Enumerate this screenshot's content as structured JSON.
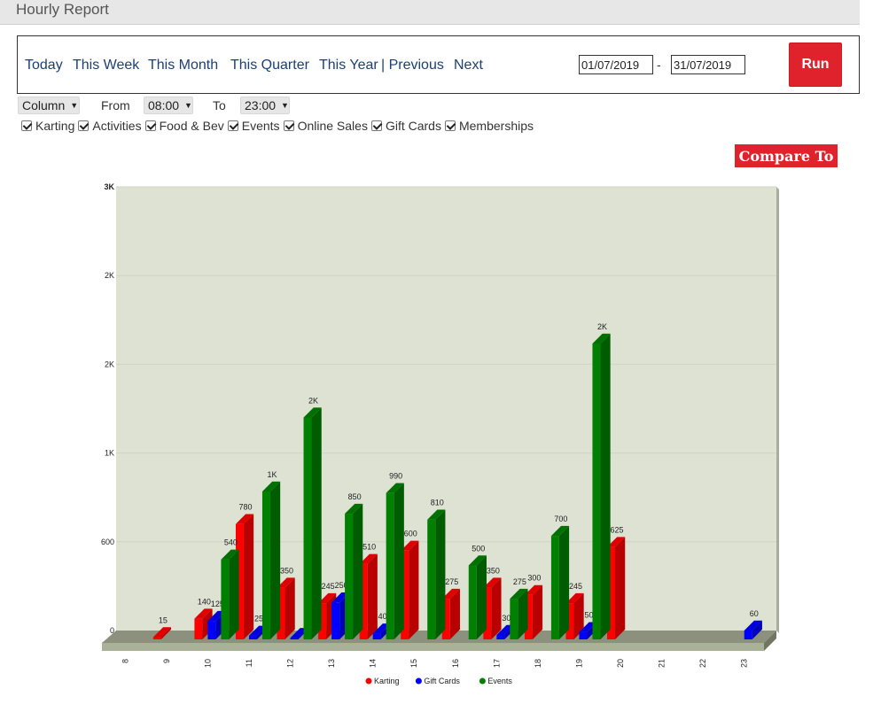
{
  "header": {
    "title": "Hourly Report"
  },
  "nav": {
    "today": "Today",
    "this_week": "This Week",
    "this_month": "This Month",
    "this_quarter": "This Quarter",
    "this_year": "This Year",
    "previous": "| Previous",
    "next": "Next"
  },
  "date_range": {
    "start": "01/07/2019",
    "separator": "-",
    "end": "31/07/2019"
  },
  "run_label": "Run",
  "controls": {
    "chart_type": "Column",
    "from_label": "From",
    "from_value": "08:00",
    "to_label": "To",
    "to_value": "23:00"
  },
  "filters": [
    {
      "label": "Karting",
      "checked": true
    },
    {
      "label": "Activities",
      "checked": true
    },
    {
      "label": "Food & Bev",
      "checked": true
    },
    {
      "label": "Events",
      "checked": true
    },
    {
      "label": "Online Sales",
      "checked": true
    },
    {
      "label": "Gift Cards",
      "checked": true
    },
    {
      "label": "Memberships",
      "checked": true
    }
  ],
  "compare_label": "Compare To",
  "chart_data": {
    "type": "bar",
    "categories": [
      "8",
      "9",
      "10",
      "11",
      "12",
      "13",
      "14",
      "15",
      "16",
      "17",
      "18",
      "19",
      "20",
      "21",
      "22",
      "23"
    ],
    "series": [
      {
        "name": "Karting",
        "color": "#ff0000",
        "values": [
          0,
          15,
          140,
          780,
          350,
          245,
          510,
          600,
          275,
          350,
          300,
          245,
          625,
          0,
          0,
          0
        ]
      },
      {
        "name": "Gift Cards",
        "color": "#0000ff",
        "values": [
          0,
          0,
          125,
          25,
          10,
          250,
          40,
          0,
          0,
          30,
          0,
          50,
          0,
          0,
          0,
          60
        ]
      },
      {
        "name": "Events",
        "color": "#008000",
        "values": [
          0,
          0,
          540,
          1000,
          1500,
          850,
          990,
          810,
          500,
          275,
          700,
          2000,
          0,
          0,
          0,
          0
        ]
      }
    ],
    "value_labels": {
      "Karting": [
        "",
        "15",
        "140",
        "780",
        "350",
        "245",
        "510",
        "600",
        "275",
        "350",
        "300",
        "245",
        "625",
        "",
        "",
        ""
      ],
      "Gift Cards": [
        "",
        "",
        "125",
        "25",
        "",
        "250",
        "40",
        "",
        "",
        "30",
        "",
        "50",
        "",
        "",
        "",
        "60"
      ],
      "Events": [
        "",
        "",
        "540",
        "1K",
        "2K",
        "850",
        "990",
        "810",
        "500",
        "275",
        "700",
        "2K",
        "",
        "",
        "",
        ""
      ]
    },
    "y_ticks": [
      {
        "value": 0,
        "label": "0"
      },
      {
        "value": 600,
        "label": "600"
      },
      {
        "value": 1200,
        "label": "1K"
      },
      {
        "value": 1800,
        "label": "2K"
      },
      {
        "value": 2400,
        "label": "2K"
      },
      {
        "value": 3000,
        "label": "3K"
      }
    ],
    "ylim": [
      0,
      3000
    ],
    "legend_position": "bottom-center",
    "grid": true
  }
}
